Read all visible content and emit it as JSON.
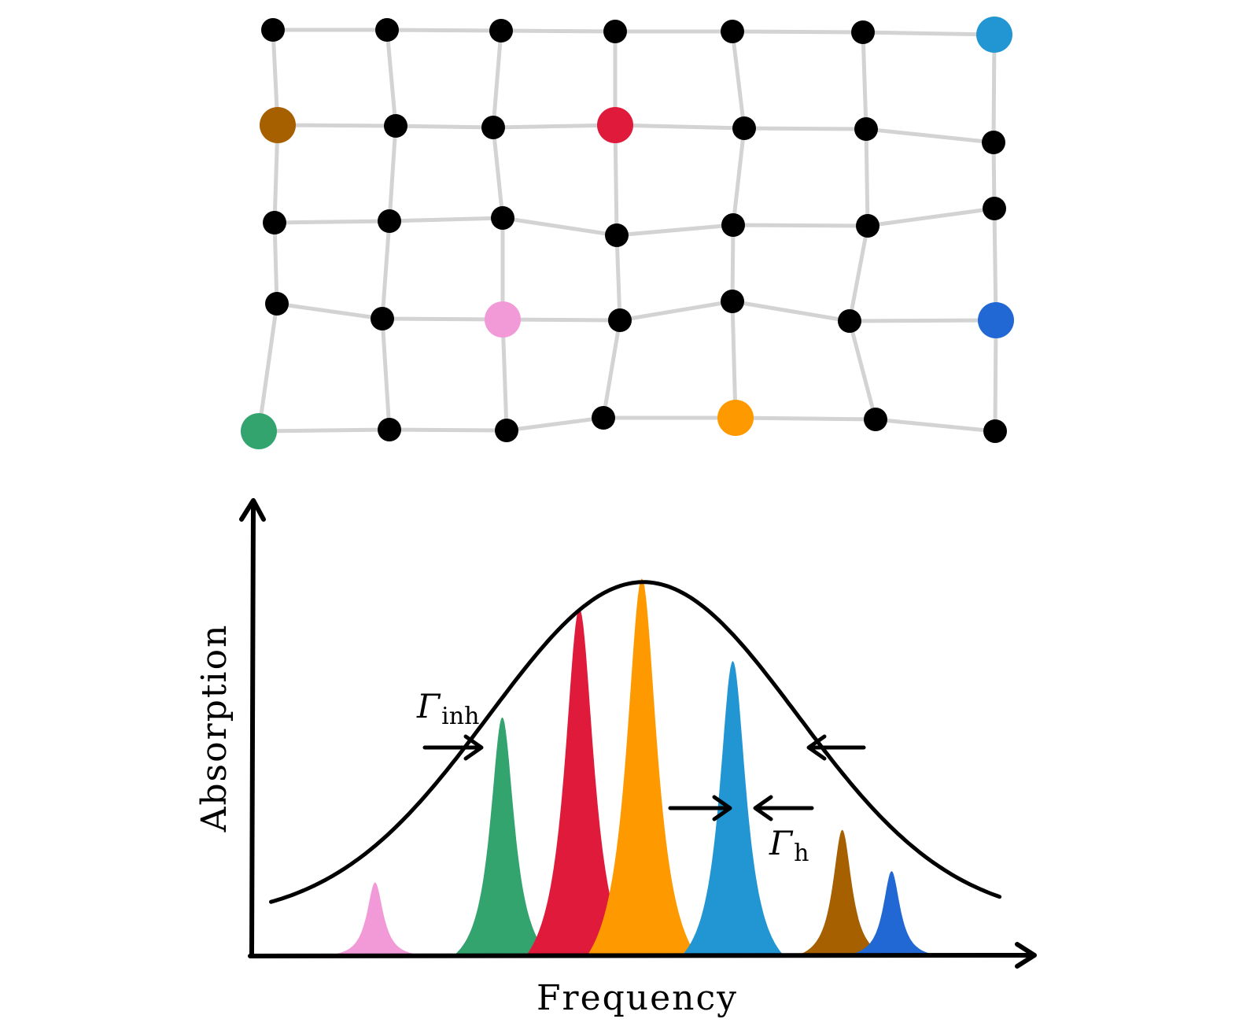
{
  "lattice": {
    "node_color_default": "#000000",
    "bond_color": "#d3d3d3",
    "colored_sites": [
      {
        "name": "cyan",
        "color": "#2196d3"
      },
      {
        "name": "brown",
        "color": "#a66000"
      },
      {
        "name": "red",
        "color": "#e01a3b"
      },
      {
        "name": "pink",
        "color": "#f299d8"
      },
      {
        "name": "blue",
        "color": "#2268d4"
      },
      {
        "name": "green",
        "color": "#33a46e"
      },
      {
        "name": "orange",
        "color": "#ff9900"
      }
    ]
  },
  "spectrum": {
    "xlabel": "Frequency",
    "ylabel": "Absorption",
    "inhomogeneous_label": {
      "symbol": "Γ",
      "subscript": "inh"
    },
    "homogeneous_label": {
      "symbol": "Γ",
      "subscript": "h"
    },
    "envelope_color": "#000000",
    "peaks": [
      {
        "site": "pink",
        "color": "#f299d8",
        "center": 0.16,
        "height": 0.19
      },
      {
        "site": "green",
        "color": "#33a46e",
        "center": 0.325,
        "height": 0.63
      },
      {
        "site": "red",
        "color": "#e01a3b",
        "center": 0.425,
        "height": 0.92
      },
      {
        "site": "orange",
        "color": "#ff9900",
        "center": 0.506,
        "height": 1.0
      },
      {
        "site": "cyan",
        "color": "#2196d3",
        "center": 0.624,
        "height": 0.78
      },
      {
        "site": "brown",
        "color": "#a66000",
        "center": 0.766,
        "height": 0.33
      },
      {
        "site": "blue",
        "color": "#2268d4",
        "center": 0.83,
        "height": 0.22
      }
    ]
  }
}
